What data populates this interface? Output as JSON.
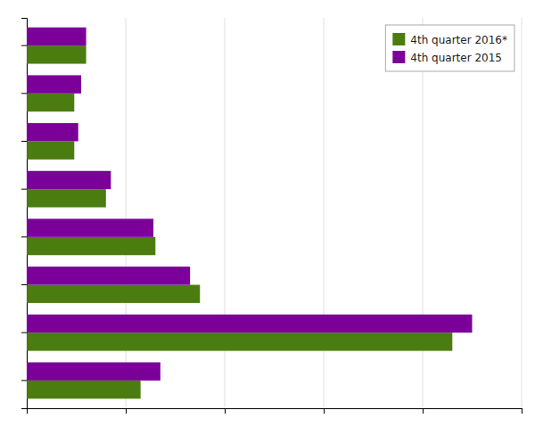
{
  "chart_data": {
    "type": "bar",
    "orientation": "horizontal",
    "categories": [
      null,
      null,
      null,
      null,
      null,
      null,
      null,
      null
    ],
    "series": [
      {
        "name": "4th quarter 2016*",
        "color": "#4a7c10",
        "values": [
          60,
          48,
          48,
          80,
          130,
          175,
          430,
          115
        ]
      },
      {
        "name": "4th quarter 2015",
        "color": "#7b0099",
        "values": [
          60,
          55,
          52,
          85,
          128,
          165,
          450,
          135
        ]
      }
    ],
    "xlim": [
      0,
      500
    ],
    "xticks": [
      0,
      100,
      200,
      300,
      400,
      500
    ],
    "grid": true,
    "legend": "top-right",
    "tick_labels": false
  }
}
